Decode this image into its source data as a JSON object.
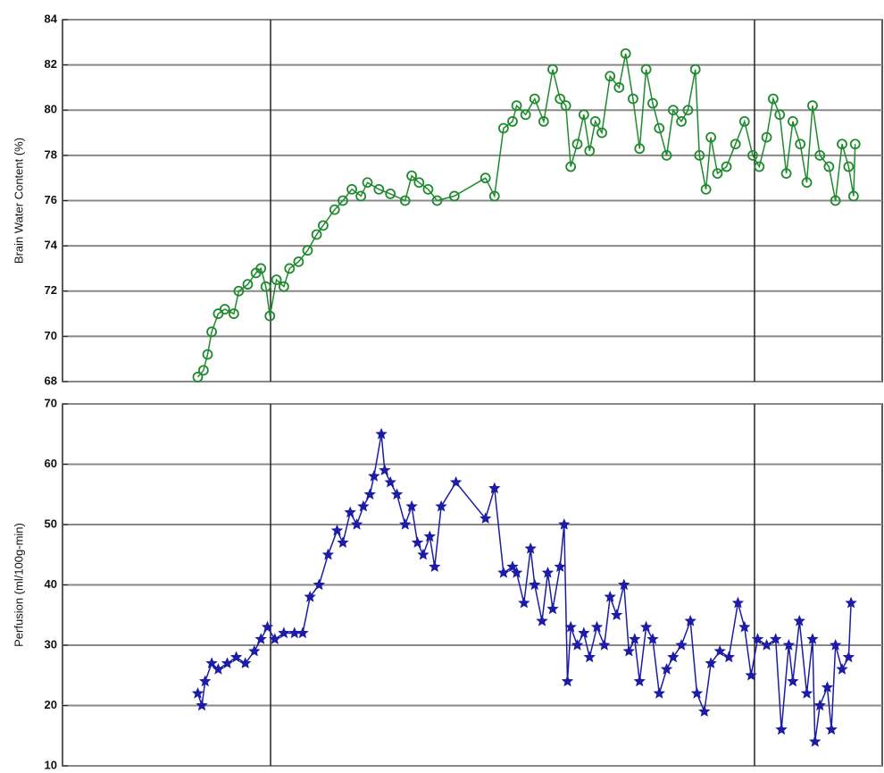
{
  "chart_data": [
    {
      "type": "line",
      "y_label": "Brain Water Content (%)",
      "color": "#1f8a2e",
      "marker": "circle",
      "xlim": [
        0,
        100
      ],
      "ylim": [
        68,
        84
      ],
      "yticks": [
        68,
        70,
        72,
        74,
        76,
        78,
        80,
        82,
        84
      ],
      "grid": true,
      "x": [
        16.5,
        17.2,
        17.7,
        18.2,
        19.0,
        19.8,
        20.9,
        21.5,
        22.6,
        23.6,
        24.2,
        24.8,
        25.3,
        26.1,
        27.0,
        27.7,
        28.8,
        29.9,
        31.0,
        31.8,
        33.2,
        34.2,
        35.3,
        36.4,
        37.2,
        38.6,
        40.0,
        41.8,
        42.6,
        43.5,
        44.6,
        45.7,
        47.8,
        51.6,
        52.7,
        53.8,
        54.9,
        55.4,
        56.5,
        57.6,
        58.7,
        59.8,
        60.7,
        61.4,
        62.0,
        62.8,
        63.6,
        64.3,
        65.0,
        65.8,
        66.8,
        67.9,
        68.7,
        69.6,
        70.4,
        71.2,
        72.0,
        72.8,
        73.7,
        74.5,
        75.5,
        76.3,
        77.2,
        77.7,
        78.5,
        79.1,
        79.9,
        81.0,
        82.1,
        83.2,
        84.2,
        85.0,
        85.9,
        86.7,
        87.5,
        88.3,
        89.1,
        90.0,
        90.8,
        91.5,
        92.4,
        93.5,
        94.3,
        95.1,
        95.9,
        96.5,
        96.7
      ],
      "values": [
        68.2,
        68.5,
        69.2,
        70.2,
        71.0,
        71.2,
        71.0,
        72.0,
        72.3,
        72.8,
        73.0,
        72.2,
        70.9,
        72.5,
        72.2,
        73.0,
        73.3,
        73.8,
        74.5,
        74.9,
        75.6,
        76.0,
        76.5,
        76.2,
        76.8,
        76.5,
        76.3,
        76.0,
        77.1,
        76.8,
        76.5,
        76.0,
        76.2,
        77.0,
        76.2,
        79.2,
        79.5,
        80.2,
        79.8,
        80.5,
        79.5,
        81.8,
        80.5,
        80.2,
        77.5,
        78.5,
        79.8,
        78.2,
        79.5,
        79.0,
        81.5,
        81.0,
        82.5,
        80.5,
        78.3,
        81.8,
        80.3,
        79.2,
        78.0,
        80.0,
        79.5,
        80.0,
        81.8,
        78.0,
        76.5,
        78.8,
        77.2,
        77.5,
        78.5,
        79.5,
        78.0,
        77.5,
        78.8,
        80.5,
        79.8,
        77.2,
        79.5,
        78.5,
        76.8,
        80.2,
        78.0,
        77.5,
        76.0,
        78.5,
        77.5,
        76.2,
        78.5
      ]
    },
    {
      "type": "line",
      "y_label": "Perfusion (ml/100g-min)",
      "color": "#1c1ca6",
      "marker": "star",
      "xlim": [
        0,
        100
      ],
      "ylim": [
        10,
        70
      ],
      "yticks": [
        10,
        20,
        30,
        40,
        50,
        60,
        70
      ],
      "grid": true,
      "x": [
        16.5,
        17.0,
        17.4,
        18.2,
        19.0,
        20.1,
        21.2,
        22.3,
        23.4,
        24.2,
        25.0,
        25.9,
        27.0,
        28.3,
        29.3,
        30.2,
        31.3,
        32.4,
        33.5,
        34.2,
        35.1,
        35.9,
        36.7,
        37.5,
        38.0,
        38.9,
        39.3,
        40.0,
        40.8,
        41.8,
        42.6,
        43.3,
        44.0,
        44.8,
        45.4,
        46.2,
        48.0,
        51.6,
        52.7,
        53.8,
        54.9,
        55.4,
        56.3,
        57.1,
        57.6,
        58.5,
        59.2,
        59.8,
        60.7,
        61.2,
        61.6,
        62.0,
        62.8,
        63.6,
        64.3,
        65.2,
        66.1,
        66.8,
        67.6,
        68.5,
        69.1,
        69.8,
        70.4,
        71.2,
        72.0,
        72.8,
        73.7,
        74.5,
        75.5,
        76.6,
        77.4,
        78.3,
        79.1,
        80.2,
        81.3,
        82.4,
        83.2,
        84.0,
        84.8,
        85.9,
        87.0,
        87.7,
        88.6,
        89.1,
        89.9,
        90.8,
        91.5,
        91.8,
        92.4,
        93.3,
        93.8,
        94.3,
        95.1,
        95.9,
        96.2
      ],
      "values": [
        22,
        20,
        24,
        27,
        26,
        27,
        28,
        27,
        29,
        31,
        33,
        31,
        32,
        32,
        32,
        38,
        40,
        45,
        49,
        47,
        52,
        50,
        53,
        55,
        58,
        65,
        59,
        57,
        55,
        50,
        53,
        47,
        45,
        48,
        43,
        53,
        57,
        51,
        56,
        42,
        43,
        42,
        37,
        46,
        40,
        34,
        42,
        36,
        43,
        50,
        24,
        33,
        30,
        32,
        28,
        33,
        30,
        38,
        35,
        40,
        29,
        31,
        24,
        33,
        31,
        22,
        26,
        28,
        30,
        34,
        22,
        19,
        27,
        29,
        28,
        37,
        33,
        25,
        31,
        30,
        31,
        16,
        30,
        24,
        34,
        22,
        31,
        14,
        20,
        23,
        16,
        30,
        26,
        28,
        37
      ]
    }
  ]
}
